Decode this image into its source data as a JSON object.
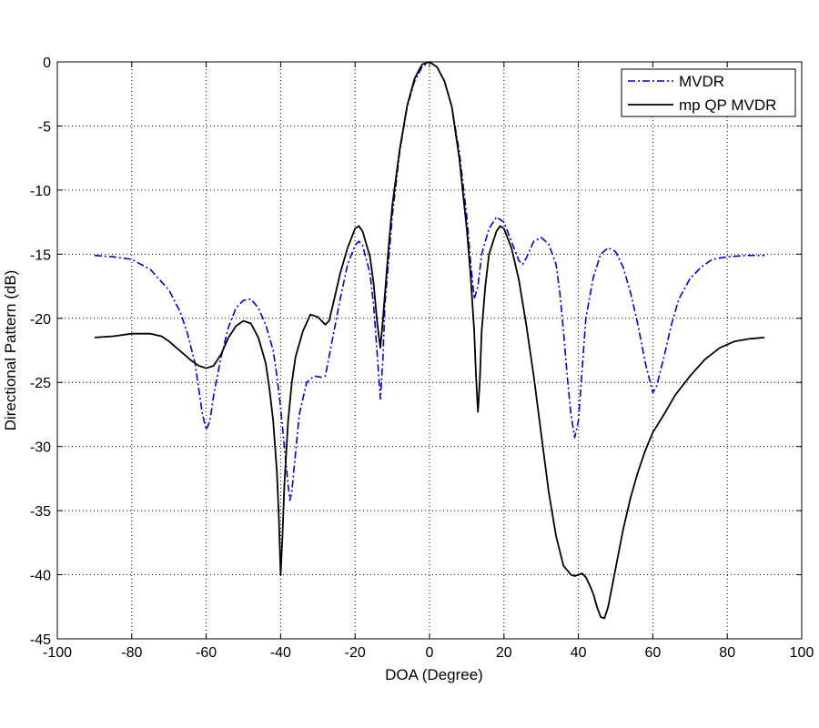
{
  "chart_data": {
    "type": "line",
    "xlabel": "DOA  (Degree)",
    "ylabel": "Directional Pattern (dB)",
    "xlim": [
      -100,
      100
    ],
    "ylim": [
      -45,
      0
    ],
    "xticks": [
      -100,
      -80,
      -60,
      -40,
      -20,
      0,
      20,
      40,
      60,
      80,
      100
    ],
    "yticks": [
      0,
      -5,
      -10,
      -15,
      -20,
      -25,
      -30,
      -35,
      -40,
      -45
    ],
    "grid": true,
    "legend_position": "top-right",
    "series": [
      {
        "name": "MVDR",
        "color": "#0000cc",
        "style": "dash-dot",
        "points": [
          [
            -90,
            -15.1
          ],
          [
            -85,
            -15.2
          ],
          [
            -80,
            -15.4
          ],
          [
            -75,
            -16.2
          ],
          [
            -70,
            -17.8
          ],
          [
            -67,
            -19.5
          ],
          [
            -65,
            -21.2
          ],
          [
            -63,
            -23.5
          ],
          [
            -62,
            -25.5
          ],
          [
            -61,
            -27.5
          ],
          [
            -60,
            -28.7
          ],
          [
            -59,
            -28.0
          ],
          [
            -58,
            -26.0
          ],
          [
            -56,
            -23.0
          ],
          [
            -54,
            -20.7
          ],
          [
            -52,
            -19.2
          ],
          [
            -50,
            -18.6
          ],
          [
            -48,
            -18.5
          ],
          [
            -46,
            -19.2
          ],
          [
            -44,
            -20.5
          ],
          [
            -42,
            -22.5
          ],
          [
            -41,
            -24.5
          ],
          [
            -40,
            -27.0
          ],
          [
            -39,
            -30.0
          ],
          [
            -38,
            -33.0
          ],
          [
            -37.5,
            -34.2
          ],
          [
            -37,
            -33.5
          ],
          [
            -36,
            -30.5
          ],
          [
            -35,
            -27.5
          ],
          [
            -33,
            -25.0
          ],
          [
            -31,
            -24.5
          ],
          [
            -29,
            -24.6
          ],
          [
            -28,
            -24.5
          ],
          [
            -26,
            -21.5
          ],
          [
            -24,
            -18.5
          ],
          [
            -22,
            -15.8
          ],
          [
            -20,
            -14.3
          ],
          [
            -19,
            -14.0
          ],
          [
            -18,
            -14.3
          ],
          [
            -16,
            -16.5
          ],
          [
            -15,
            -19.0
          ],
          [
            -14,
            -23.0
          ],
          [
            -13.2,
            -26.3
          ],
          [
            -12.5,
            -23.0
          ],
          [
            -12,
            -19.0
          ],
          [
            -10,
            -12.0
          ],
          [
            -8,
            -7.0
          ],
          [
            -6,
            -3.5
          ],
          [
            -4,
            -1.5
          ],
          [
            -2,
            -0.4
          ],
          [
            0,
            0.0
          ],
          [
            2,
            -0.4
          ],
          [
            4,
            -1.5
          ],
          [
            6,
            -3.5
          ],
          [
            8,
            -7.0
          ],
          [
            10,
            -12.0
          ],
          [
            11,
            -15.5
          ],
          [
            12,
            -18.5
          ],
          [
            13,
            -17.5
          ],
          [
            14,
            -15.0
          ],
          [
            16,
            -13.0
          ],
          [
            18,
            -12.1
          ],
          [
            20,
            -12.5
          ],
          [
            22,
            -14.0
          ],
          [
            24,
            -15.5
          ],
          [
            25,
            -15.8
          ],
          [
            26,
            -15.3
          ],
          [
            28,
            -14.0
          ],
          [
            30,
            -13.7
          ],
          [
            32,
            -14.2
          ],
          [
            34,
            -15.8
          ],
          [
            35,
            -18.0
          ],
          [
            36,
            -21.0
          ],
          [
            37,
            -24.5
          ],
          [
            38,
            -27.5
          ],
          [
            39,
            -29.3
          ],
          [
            40,
            -28.0
          ],
          [
            41,
            -24.0
          ],
          [
            42,
            -20.0
          ],
          [
            44,
            -16.8
          ],
          [
            46,
            -15.0
          ],
          [
            48,
            -14.5
          ],
          [
            50,
            -14.8
          ],
          [
            52,
            -16.0
          ],
          [
            54,
            -18.0
          ],
          [
            56,
            -20.5
          ],
          [
            58,
            -23.5
          ],
          [
            60,
            -25.8
          ],
          [
            61,
            -25.3
          ],
          [
            63,
            -23.0
          ],
          [
            65,
            -20.5
          ],
          [
            67,
            -18.5
          ],
          [
            70,
            -16.9
          ],
          [
            73,
            -16.0
          ],
          [
            76,
            -15.4
          ],
          [
            80,
            -15.2
          ],
          [
            85,
            -15.1
          ],
          [
            90,
            -15.1
          ]
        ]
      },
      {
        "name": "mp QP MVDR",
        "color": "#000000",
        "style": "solid",
        "points": [
          [
            -90,
            -21.5
          ],
          [
            -85,
            -21.4
          ],
          [
            -80,
            -21.2
          ],
          [
            -75,
            -21.2
          ],
          [
            -72,
            -21.4
          ],
          [
            -70,
            -21.8
          ],
          [
            -68,
            -22.3
          ],
          [
            -66,
            -22.8
          ],
          [
            -64,
            -23.3
          ],
          [
            -62,
            -23.7
          ],
          [
            -60,
            -23.9
          ],
          [
            -58,
            -23.7
          ],
          [
            -56,
            -22.8
          ],
          [
            -54,
            -21.5
          ],
          [
            -52,
            -20.6
          ],
          [
            -50,
            -20.2
          ],
          [
            -48,
            -20.4
          ],
          [
            -46,
            -21.5
          ],
          [
            -44,
            -23.5
          ],
          [
            -43,
            -25.5
          ],
          [
            -42,
            -28.0
          ],
          [
            -41,
            -32.0
          ],
          [
            -40.5,
            -35.5
          ],
          [
            -40,
            -40.0
          ],
          [
            -39.5,
            -37.0
          ],
          [
            -39,
            -33.0
          ],
          [
            -38,
            -28.0
          ],
          [
            -37,
            -25.0
          ],
          [
            -36,
            -23.0
          ],
          [
            -34,
            -21.0
          ],
          [
            -32,
            -19.7
          ],
          [
            -30,
            -19.9
          ],
          [
            -28,
            -20.5
          ],
          [
            -27,
            -20.2
          ],
          [
            -26,
            -19.0
          ],
          [
            -24,
            -16.5
          ],
          [
            -22,
            -14.5
          ],
          [
            -20,
            -13.0
          ],
          [
            -19,
            -12.8
          ],
          [
            -18,
            -13.2
          ],
          [
            -16,
            -15.2
          ],
          [
            -15,
            -17.3
          ],
          [
            -14,
            -20.5
          ],
          [
            -13.2,
            -22.3
          ],
          [
            -12.5,
            -20.0
          ],
          [
            -11,
            -14.5
          ],
          [
            -10,
            -11.2
          ],
          [
            -8,
            -6.8
          ],
          [
            -6,
            -3.4
          ],
          [
            -4,
            -1.3
          ],
          [
            -2,
            -0.2
          ],
          [
            0,
            0.0
          ],
          [
            2,
            -0.4
          ],
          [
            4,
            -1.5
          ],
          [
            6,
            -3.5
          ],
          [
            8,
            -7.5
          ],
          [
            10,
            -13.0
          ],
          [
            11,
            -16.5
          ],
          [
            12,
            -21.0
          ],
          [
            12.5,
            -24.5
          ],
          [
            13,
            -27.3
          ],
          [
            13.5,
            -25.0
          ],
          [
            14,
            -21.0
          ],
          [
            15,
            -17.5
          ],
          [
            16,
            -15.0
          ],
          [
            18,
            -13.2
          ],
          [
            19,
            -12.8
          ],
          [
            20,
            -13.0
          ],
          [
            22,
            -14.5
          ],
          [
            24,
            -17.0
          ],
          [
            26,
            -20.5
          ],
          [
            28,
            -24.5
          ],
          [
            30,
            -29.0
          ],
          [
            32,
            -33.5
          ],
          [
            34,
            -37.0
          ],
          [
            36,
            -39.3
          ],
          [
            38,
            -40.0
          ],
          [
            39,
            -40.1
          ],
          [
            40,
            -40.0
          ],
          [
            41,
            -39.9
          ],
          [
            42,
            -40.2
          ],
          [
            43,
            -40.8
          ],
          [
            44,
            -41.5
          ],
          [
            45,
            -42.5
          ],
          [
            46,
            -43.3
          ],
          [
            47,
            -43.4
          ],
          [
            48,
            -42.5
          ],
          [
            50,
            -39.5
          ],
          [
            52,
            -36.5
          ],
          [
            54,
            -34.0
          ],
          [
            56,
            -32.0
          ],
          [
            58,
            -30.3
          ],
          [
            60,
            -28.9
          ],
          [
            63,
            -27.5
          ],
          [
            66,
            -26.0
          ],
          [
            70,
            -24.5
          ],
          [
            74,
            -23.2
          ],
          [
            78,
            -22.3
          ],
          [
            82,
            -21.8
          ],
          [
            86,
            -21.6
          ],
          [
            90,
            -21.5
          ]
        ]
      }
    ]
  }
}
